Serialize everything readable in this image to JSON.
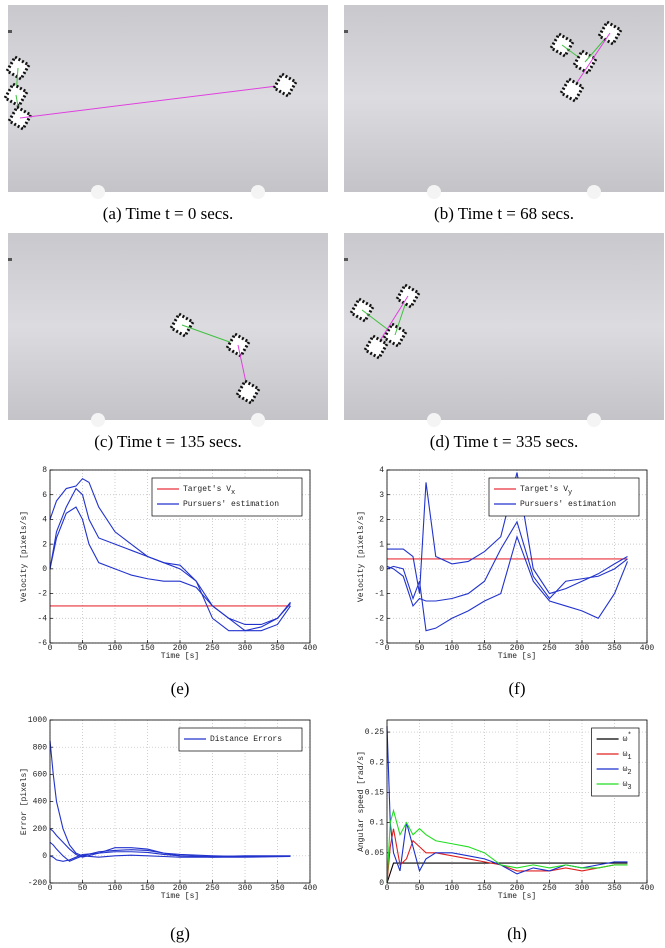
{
  "figure": {
    "photos": [
      {
        "caption": "(a) Time t = 0 secs."
      },
      {
        "caption": "(b) Time t = 68 secs."
      },
      {
        "caption": "(c) Time t = 135 secs."
      },
      {
        "caption": "(d) Time t = 335 secs."
      }
    ]
  },
  "chart_data": [
    {
      "type": "line",
      "caption": "(e)",
      "xlabel": "Time [s]",
      "ylabel": "Velocity [pixels/s]",
      "xlim": [
        0,
        400
      ],
      "ylim": [
        -6,
        8
      ],
      "xticks": [
        0,
        50,
        100,
        150,
        200,
        250,
        300,
        350,
        400
      ],
      "yticks": [
        -6,
        -4,
        -2,
        0,
        2,
        4,
        6,
        8
      ],
      "grid": true,
      "legend": "upper right",
      "series": [
        {
          "name": "Target's V",
          "name_subscript": "x",
          "color": "#e8303a",
          "x": [
            0,
            370
          ],
          "values": [
            -3,
            -3
          ]
        },
        {
          "name": "Pursuers' estimation",
          "color": "#2233cc",
          "x": [
            0,
            10,
            25,
            40,
            50,
            60,
            75,
            100,
            125,
            150,
            175,
            200,
            225,
            250,
            275,
            300,
            325,
            350,
            370
          ],
          "values": [
            0,
            3,
            5,
            6.5,
            6,
            4,
            2.5,
            2,
            1.5,
            1,
            0.5,
            0,
            -1,
            -3,
            -4,
            -4.5,
            -4.5,
            -4,
            -2.8
          ]
        },
        {
          "color": "#2233cc",
          "x": [
            0,
            10,
            25,
            40,
            50,
            60,
            75,
            100,
            125,
            150,
            175,
            200,
            225,
            250,
            275,
            300,
            325,
            350,
            370
          ],
          "values": [
            4,
            5.5,
            6.5,
            6.7,
            7.3,
            7,
            5,
            3,
            2,
            1,
            0.5,
            0.3,
            -1,
            -4,
            -5,
            -5,
            -4.7,
            -4,
            -2.7
          ]
        },
        {
          "color": "#2233cc",
          "x": [
            0,
            10,
            25,
            40,
            50,
            60,
            75,
            100,
            125,
            150,
            175,
            200,
            225,
            250,
            275,
            300,
            325,
            350,
            370
          ],
          "values": [
            0,
            2.5,
            4.5,
            5,
            4,
            2,
            0.5,
            0,
            -0.5,
            -0.8,
            -1,
            -1,
            -1.5,
            -3,
            -4,
            -5,
            -5,
            -4.5,
            -3
          ]
        }
      ]
    },
    {
      "type": "line",
      "caption": "(f)",
      "xlabel": "Time [s]",
      "ylabel": "Velocity [pixels/s]",
      "xlim": [
        0,
        400
      ],
      "ylim": [
        -3,
        4
      ],
      "xticks": [
        0,
        50,
        100,
        150,
        200,
        250,
        300,
        350,
        400
      ],
      "yticks": [
        -3,
        -2,
        -1,
        0,
        1,
        2,
        3,
        4
      ],
      "grid": true,
      "legend": "upper right",
      "series": [
        {
          "name": "Target's V",
          "name_subscript": "y",
          "color": "#e8303a",
          "x": [
            0,
            370
          ],
          "values": [
            0.4,
            0.4
          ]
        },
        {
          "name": "Pursuers' estimation",
          "color": "#2233cc",
          "x": [
            0,
            10,
            25,
            40,
            50,
            60,
            75,
            100,
            125,
            150,
            175,
            200,
            225,
            250,
            275,
            300,
            325,
            350,
            370
          ],
          "values": [
            0.8,
            0.8,
            0.8,
            0.5,
            -1,
            3.5,
            0.5,
            0.2,
            0.3,
            0.7,
            1.3,
            3.9,
            0,
            -1,
            -0.8,
            -0.5,
            -0.2,
            0.2,
            0.5
          ]
        },
        {
          "color": "#2233cc",
          "x": [
            0,
            10,
            25,
            40,
            50,
            60,
            75,
            100,
            125,
            150,
            175,
            200,
            225,
            250,
            275,
            300,
            325,
            350,
            370
          ],
          "values": [
            0,
            0.1,
            0,
            -1.2,
            -0.5,
            -2.5,
            -2.4,
            -2,
            -1.7,
            -1.3,
            -1,
            1.3,
            -0.5,
            -1.3,
            -1.5,
            -1.7,
            -2,
            -1,
            0.3
          ]
        },
        {
          "color": "#2233cc",
          "x": [
            0,
            10,
            25,
            40,
            50,
            60,
            75,
            100,
            125,
            150,
            175,
            200,
            225,
            250,
            275,
            300,
            325,
            350,
            370
          ],
          "values": [
            0.1,
            0,
            -0.3,
            -1.5,
            -1.2,
            -1.3,
            -1.3,
            -1.2,
            -1,
            -0.5,
            0.8,
            1.9,
            -0.3,
            -1.2,
            -0.5,
            -0.4,
            -0.3,
            0,
            0.4
          ]
        }
      ]
    },
    {
      "type": "line",
      "caption": "(g)",
      "xlabel": "Time [s]",
      "ylabel": "Error [pixels]",
      "xlim": [
        0,
        400
      ],
      "ylim": [
        -200,
        1000
      ],
      "xticks": [
        0,
        50,
        100,
        150,
        200,
        250,
        300,
        350,
        400
      ],
      "yticks": [
        -200,
        0,
        200,
        400,
        600,
        800,
        1000
      ],
      "grid": true,
      "legend": "upper right",
      "series": [
        {
          "name": "Distance Errors",
          "color": "#2233cc",
          "x": [
            0,
            5,
            10,
            20,
            30,
            40,
            50,
            75,
            100,
            125,
            150,
            175,
            200,
            250,
            300,
            370
          ],
          "values": [
            850,
            600,
            400,
            200,
            80,
            20,
            0,
            -10,
            0,
            5,
            0,
            -5,
            -10,
            -10,
            -10,
            -5
          ]
        },
        {
          "color": "#2233cc",
          "x": [
            0,
            5,
            10,
            20,
            30,
            40,
            50,
            75,
            100,
            125,
            150,
            175,
            200,
            250,
            300,
            370
          ],
          "values": [
            200,
            180,
            150,
            100,
            50,
            10,
            -10,
            20,
            60,
            60,
            50,
            20,
            0,
            -10,
            -5,
            -5
          ]
        },
        {
          "color": "#2233cc",
          "x": [
            0,
            5,
            10,
            20,
            30,
            40,
            50,
            75,
            100,
            125,
            150,
            175,
            200,
            250,
            300,
            370
          ],
          "values": [
            100,
            80,
            50,
            0,
            -40,
            -20,
            0,
            30,
            40,
            45,
            40,
            20,
            10,
            0,
            -5,
            -5
          ]
        },
        {
          "color": "#2233cc",
          "x": [
            0,
            5,
            10,
            20,
            30,
            40,
            50,
            75,
            100,
            125,
            150,
            175,
            200,
            250,
            300,
            370
          ],
          "values": [
            0,
            -10,
            -30,
            -40,
            -30,
            -10,
            10,
            20,
            30,
            30,
            25,
            10,
            0,
            -5,
            0,
            0
          ]
        }
      ]
    },
    {
      "type": "line",
      "caption": "(h)",
      "xlabel": "Time [s]",
      "ylabel": "Angular speed [rad/s]",
      "xlim": [
        0,
        400
      ],
      "ylim": [
        0,
        0.27
      ],
      "xticks": [
        0,
        50,
        100,
        150,
        200,
        250,
        300,
        350,
        400
      ],
      "yticks": [
        0,
        0.05,
        0.1,
        0.15,
        0.2,
        0.25
      ],
      "grid": true,
      "legend": "upper right",
      "series": [
        {
          "name": "ω",
          "name_superscript": "*",
          "color": "#000000",
          "x": [
            0,
            10,
            370
          ],
          "values": [
            0,
            0.033,
            0.033
          ]
        },
        {
          "name": "ω",
          "name_subscript": "1",
          "color": "#e02020",
          "x": [
            0,
            5,
            10,
            20,
            30,
            40,
            50,
            60,
            75,
            100,
            125,
            150,
            175,
            200,
            225,
            250,
            275,
            300,
            325,
            350,
            370
          ],
          "values": [
            0,
            0.06,
            0.09,
            0.03,
            0.04,
            0.07,
            0.06,
            0.05,
            0.05,
            0.045,
            0.04,
            0.035,
            0.03,
            0.02,
            0.02,
            0.02,
            0.025,
            0.02,
            0.025,
            0.03,
            0.03
          ]
        },
        {
          "name": "ω",
          "name_subscript": "2",
          "color": "#1a2fcc",
          "x": [
            0,
            5,
            10,
            20,
            30,
            40,
            50,
            60,
            75,
            100,
            125,
            150,
            175,
            200,
            225,
            250,
            275,
            300,
            325,
            350,
            370
          ],
          "values": [
            0.26,
            0.1,
            0.05,
            0.02,
            0.1,
            0.06,
            0.02,
            0.04,
            0.05,
            0.05,
            0.045,
            0.04,
            0.03,
            0.015,
            0.025,
            0.02,
            0.03,
            0.025,
            0.03,
            0.035,
            0.035
          ]
        },
        {
          "name": "ω",
          "name_subscript": "3",
          "color": "#22dd22",
          "x": [
            0,
            5,
            10,
            20,
            30,
            40,
            50,
            60,
            75,
            100,
            125,
            150,
            175,
            200,
            225,
            250,
            275,
            300,
            325,
            350,
            370
          ],
          "values": [
            0,
            0.1,
            0.12,
            0.08,
            0.1,
            0.08,
            0.09,
            0.08,
            0.07,
            0.065,
            0.06,
            0.05,
            0.03,
            0.025,
            0.03,
            0.025,
            0.03,
            0.025,
            0.025,
            0.03,
            0.03
          ]
        }
      ]
    }
  ]
}
